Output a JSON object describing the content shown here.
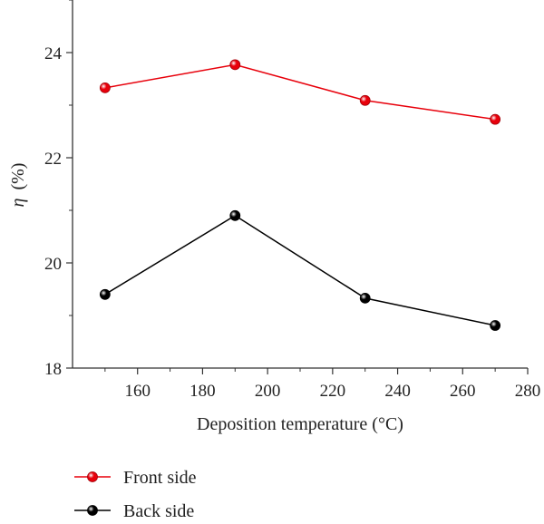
{
  "chart_data": {
    "type": "line",
    "title": "",
    "xlabel": "Deposition temperature (°C)",
    "ylabel_symbol": "η",
    "ylabel_unit": "(%)",
    "xlim": [
      140,
      280
    ],
    "ylim": [
      18,
      25
    ],
    "xticks": [
      160,
      180,
      200,
      220,
      240,
      260,
      280
    ],
    "yticks": [
      18,
      20,
      22,
      24
    ],
    "grid": false,
    "legend_position": "bottom-left, below plot",
    "series": [
      {
        "name": "Front side",
        "color": "#e8000b",
        "x": [
          150,
          190,
          230,
          270
        ],
        "y": [
          23.33,
          23.77,
          23.09,
          22.73
        ]
      },
      {
        "name": "Back side",
        "color": "#000000",
        "x": [
          150,
          190,
          230,
          270
        ],
        "y": [
          19.4,
          20.9,
          19.33,
          18.81
        ]
      }
    ]
  }
}
